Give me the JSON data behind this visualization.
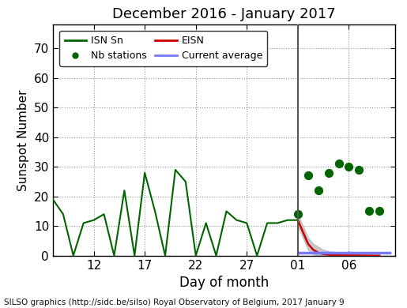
{
  "title": "December 2016 - January 2017",
  "xlabel": "Day of month",
  "ylabel": "Sunspot Number",
  "footer": "SILSO graphics (http://sidc.be/silso) Royal Observatory of Belgium, 2017 January 9",
  "ylim": [
    0,
    78
  ],
  "xlim": [
    8.0,
    41.5
  ],
  "background_color": "#ffffff",
  "isnsn_x": [
    8,
    9,
    10,
    11,
    12,
    13,
    14,
    15,
    16,
    17,
    18,
    19,
    20,
    21,
    22,
    23,
    24,
    25,
    26,
    27,
    28,
    29,
    30,
    31,
    32
  ],
  "isnsn_y": [
    19,
    14,
    0,
    11,
    12,
    14,
    0,
    22,
    0,
    28,
    15,
    0,
    29,
    25,
    0,
    11,
    0,
    15,
    12,
    11,
    0,
    11,
    11,
    12,
    12
  ],
  "eisn_x": [
    32,
    32.5,
    33,
    33.5,
    34,
    34.5,
    35,
    35.5,
    36,
    36.5,
    37,
    37.5,
    38,
    38.5,
    39,
    39.5,
    40
  ],
  "eisn_y": [
    12,
    8,
    4,
    2,
    1,
    0.5,
    0.3,
    0.2,
    0.15,
    0.1,
    0.08,
    0.06,
    0.05,
    0.04,
    0.03,
    0.02,
    0.01
  ],
  "eisn_upper": [
    14,
    10,
    6,
    4,
    3,
    2,
    1.5,
    1.2,
    1.0,
    0.8,
    0.6,
    0.5,
    0.4,
    0.3,
    0.25,
    0.2,
    0.15
  ],
  "eisn_lower": [
    10,
    6,
    2,
    0.5,
    0.0,
    0.0,
    0.0,
    0.0,
    0.0,
    0.0,
    0.0,
    0.0,
    0.0,
    0.0,
    0.0,
    0.0,
    0.0
  ],
  "nb_stations_x": [
    32,
    33,
    34,
    35,
    36,
    37,
    38,
    39,
    40
  ],
  "nb_stations_y": [
    14,
    27,
    22,
    28,
    31,
    30,
    29,
    15,
    15
  ],
  "current_avg_x": [
    32,
    33,
    34,
    35,
    36,
    37,
    38,
    39,
    40,
    41
  ],
  "current_avg_y": [
    1.0,
    1.0,
    1.0,
    1.0,
    1.0,
    1.0,
    1.0,
    1.0,
    1.0,
    1.0
  ],
  "vline_x": 32,
  "xticks": [
    12,
    17,
    22,
    27,
    32,
    37
  ],
  "xticklabels": [
    "12",
    "17",
    "22",
    "27",
    "01",
    "06"
  ],
  "yticks": [
    0,
    10,
    20,
    30,
    40,
    50,
    60,
    70
  ],
  "isnsn_color": "#006400",
  "eisn_color": "#cc0000",
  "nb_color": "#006400",
  "current_avg_color": "#7777ff",
  "vline_color": "#555555",
  "shade_color": "#bbbbbb",
  "grid_color": "#888888"
}
